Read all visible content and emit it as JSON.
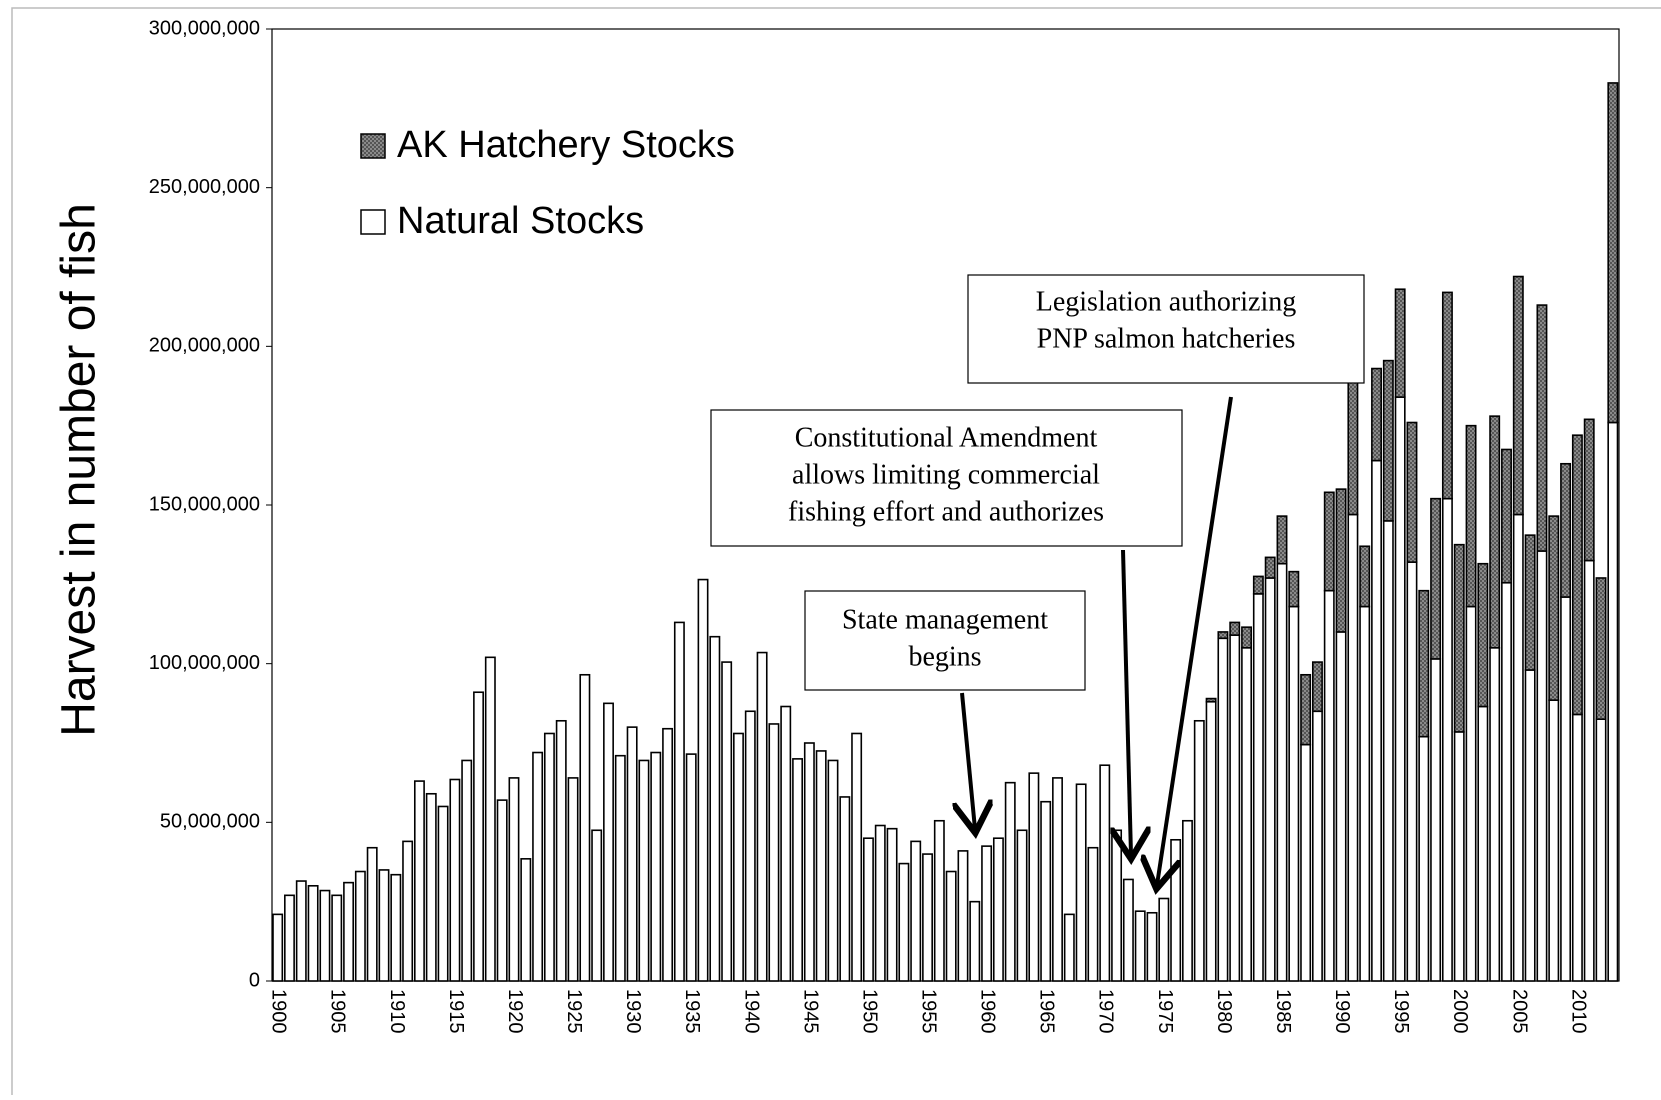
{
  "chart_data": {
    "type": "stacked-bar",
    "y_label": "Harvest in number of fish",
    "categories": [
      1900,
      null,
      null,
      null,
      null,
      1905,
      null,
      null,
      null,
      null,
      1910,
      null,
      null,
      null,
      null,
      1915,
      null,
      null,
      null,
      null,
      1920,
      null,
      null,
      null,
      null,
      1925,
      null,
      null,
      null,
      null,
      1930,
      null,
      null,
      null,
      null,
      1935,
      null,
      null,
      null,
      null,
      1940,
      null,
      null,
      null,
      null,
      1945,
      null,
      null,
      null,
      null,
      1950,
      null,
      null,
      null,
      null,
      1955,
      null,
      null,
      null,
      null,
      1960,
      null,
      null,
      null,
      null,
      1965,
      null,
      null,
      null,
      null,
      1970,
      null,
      null,
      null,
      null,
      1975,
      null,
      null,
      null,
      null,
      1980,
      null,
      null,
      null,
      null,
      1985,
      null,
      null,
      null,
      null,
      1990,
      null,
      null,
      null,
      null,
      1995,
      null,
      null,
      null,
      null,
      2000,
      null,
      null,
      null,
      null,
      2005,
      null,
      null,
      null,
      null,
      2010,
      null,
      null,
      null
    ],
    "series": [
      {
        "name": "Natural Stocks",
        "color": "#ffffff",
        "values": [
          21000000,
          27000000,
          31500000,
          30000000,
          28500000,
          27000000,
          31000000,
          34500000,
          42000000,
          35000000,
          33500000,
          44000000,
          63000000,
          59000000,
          55000000,
          63500000,
          69500000,
          91000000,
          102000000,
          57000000,
          64000000,
          38500000,
          72000000,
          78000000,
          82000000,
          64000000,
          96500000,
          47500000,
          87500000,
          71000000,
          80000000,
          69500000,
          72000000,
          79500000,
          113000000,
          71500000,
          126500000,
          108500000,
          100500000,
          78000000,
          85000000,
          103500000,
          81000000,
          86500000,
          70000000,
          75000000,
          72500000,
          69500000,
          58000000,
          78000000,
          45000000,
          49000000,
          48000000,
          37000000,
          44000000,
          40000000,
          50500000,
          34500000,
          41000000,
          25000000,
          42500000,
          45000000,
          62500000,
          47500000,
          65500000,
          56500000,
          64000000,
          21000000,
          62000000,
          42000000,
          68000000,
          47500000,
          32000000,
          22000000,
          21500000,
          26000000,
          44500000,
          50500000,
          82000000,
          88000000,
          108000000,
          109000000,
          105000000,
          122000000,
          127000000,
          131500000,
          118000000,
          74500000,
          85000000,
          123000000,
          110000000,
          147000000,
          118000000,
          164000000,
          145000000,
          184000000,
          132000000,
          77000000,
          101500000,
          152000000,
          78500000,
          118000000,
          86500000,
          105000000,
          125500000,
          147000000,
          98000000,
          135500000,
          88500000,
          121000000,
          84000000,
          132500000,
          82500000,
          176000000
        ]
      },
      {
        "name": "AK Hatchery Stocks",
        "color": "#8a8a8a",
        "values": [
          0,
          0,
          0,
          0,
          0,
          0,
          0,
          0,
          0,
          0,
          0,
          0,
          0,
          0,
          0,
          0,
          0,
          0,
          0,
          0,
          0,
          0,
          0,
          0,
          0,
          0,
          0,
          0,
          0,
          0,
          0,
          0,
          0,
          0,
          0,
          0,
          0,
          0,
          0,
          0,
          0,
          0,
          0,
          0,
          0,
          0,
          0,
          0,
          0,
          0,
          0,
          0,
          0,
          0,
          0,
          0,
          0,
          0,
          0,
          0,
          0,
          0,
          0,
          0,
          0,
          0,
          0,
          0,
          0,
          0,
          0,
          0,
          0,
          0,
          0,
          0,
          0,
          0,
          0,
          1000000,
          2000000,
          4000000,
          6500000,
          5500000,
          6500000,
          15000000,
          11000000,
          22000000,
          15500000,
          31000000,
          45000000,
          42000000,
          19000000,
          29000000,
          50500000,
          34000000,
          44000000,
          46000000,
          50500000,
          65000000,
          59000000,
          57000000,
          45000000,
          73000000,
          42000000,
          75000000,
          42500000,
          77500000,
          58000000,
          42000000,
          88000000,
          44500000,
          44500000,
          107000000
        ]
      }
    ],
    "ylim": [
      0,
      300000000
    ],
    "yticks": [
      0,
      {
        "value": 50000000,
        "label": "50,000,000"
      },
      {
        "value": 100000000,
        "label": "100,000,000"
      },
      {
        "value": 150000000,
        "label": "150,000,000"
      },
      {
        "value": 200000000,
        "label": "200,000,000"
      },
      {
        "value": 250000000,
        "label": "250,000,000"
      },
      {
        "value": 300000000,
        "label": "300,000,000"
      }
    ],
    "annotations": [
      {
        "lines": [
          "Legislation authorizing",
          "PNP salmon hatcheries"
        ]
      },
      {
        "lines": [
          "Constitutional Amendment",
          "allows limiting commercial",
          "fishing effort and authorizes"
        ]
      },
      {
        "lines": [
          "State management",
          "begins"
        ]
      }
    ]
  }
}
